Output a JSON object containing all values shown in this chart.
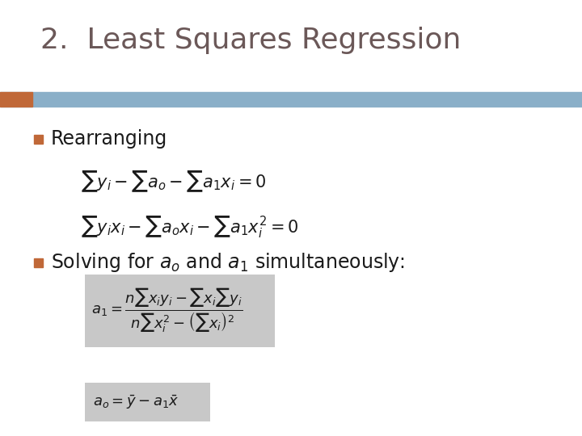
{
  "title": "2.  Least Squares Regression",
  "title_color": "#6b5858",
  "title_fontsize": 26,
  "bg_color": "#ffffff",
  "header_bar_color": "#8aafc8",
  "header_bar_accent": "#c06838",
  "bullet_color": "#c06838",
  "text_color": "#1a1a1a",
  "formula_bg_color": "#c8c8c8",
  "bullet1_text": "Rearranging",
  "bullet2_text": "Solving for $\\mathbf{a_o}$ and $\\mathbf{a_1}$ simultaneously:",
  "eq1": "$\\sum y_i - \\sum a_o - \\sum a_1 x_i = 0$",
  "eq2": "$\\sum y_i x_i - \\sum a_o x_i - \\sum a_1 x_i^2 = 0$",
  "eq3": "$a_1 = \\dfrac{n\\sum x_i y_i - \\sum x_i \\sum y_i}{n\\sum x_i^2 - \\left(\\sum x_i\\right)^2}$",
  "eq4": "$a_o = \\bar{y} - a_1 \\bar{x}$"
}
